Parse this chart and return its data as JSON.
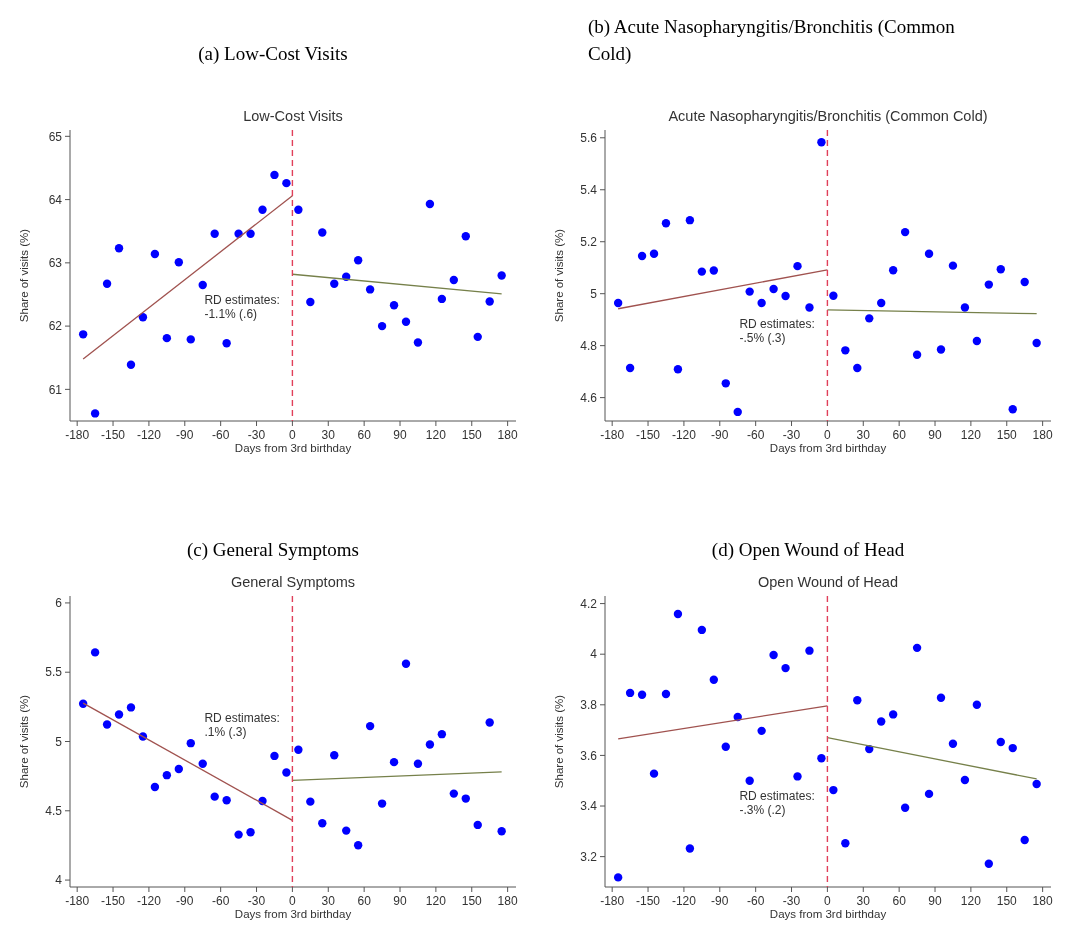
{
  "chart_data": [
    {
      "type": "scatter",
      "subtitle": "(a) Low-Cost Visits",
      "title": "Low-Cost Visits",
      "xlabel": "Days from 3rd birthday",
      "ylabel": "Share of visits (%)",
      "annotations": [
        "RD estimates:\n-1.1% (.6)"
      ],
      "xlim": [
        -186,
        187
      ],
      "xticks": [
        -180,
        -150,
        -120,
        -90,
        -60,
        -30,
        0,
        30,
        60,
        90,
        120,
        150,
        180
      ],
      "ylim": [
        60.5,
        65.1
      ],
      "yticks": [
        61,
        62,
        63,
        64,
        65
      ],
      "x": [
        -175,
        -165,
        -155,
        -145,
        -135,
        -125,
        -115,
        -105,
        -95,
        -85,
        -75,
        -65,
        -55,
        -45,
        -35,
        -25,
        -15,
        -5,
        5,
        15,
        25,
        35,
        45,
        55,
        65,
        75,
        85,
        95,
        105,
        115,
        125,
        135,
        145,
        155,
        165,
        175
      ],
      "ref_lines": [
        {
          "axis": "x",
          "value": 0,
          "color": "#e0405a",
          "line_style": "dashed"
        }
      ],
      "series": [
        {
          "marker": "circle",
          "color": "#0000ff",
          "values": [
            61.87,
            60.62,
            62.67,
            63.23,
            61.39,
            62.14,
            63.14,
            61.81,
            63.01,
            61.79,
            62.65,
            63.46,
            61.73,
            63.46,
            63.46,
            63.84,
            64.39,
            64.26,
            63.84,
            62.38,
            63.48,
            62.67,
            62.78,
            63.04,
            62.58,
            62.0,
            62.33,
            62.07,
            61.74,
            63.93,
            62.43,
            62.73,
            63.42,
            61.83,
            62.39,
            62.8
          ]
        },
        {
          "type": "line",
          "color": "#a0524f",
          "x": [
            -175,
            0
          ],
          "values": [
            61.48,
            64.06
          ]
        },
        {
          "type": "line",
          "color": "#76804a",
          "x": [
            0,
            175
          ],
          "values": [
            62.82,
            62.51
          ]
        }
      ]
    },
    {
      "type": "scatter",
      "subtitle": "(b) Acute Nasopharyngitis/Bronchitis (Common Cold)",
      "title": "Acute Nasopharyngitis/Bronchitis (Common Cold)",
      "xlabel": "Days from 3rd birthday",
      "ylabel": "Share of visits (%)",
      "annotations": [
        "RD estimates:\n-.5% (.3)"
      ],
      "xlim": [
        -186,
        187
      ],
      "xticks": [
        -180,
        -150,
        -120,
        -90,
        -60,
        -30,
        0,
        30,
        60,
        90,
        120,
        150,
        180
      ],
      "ylim": [
        4.51,
        5.63
      ],
      "yticks": [
        4.6,
        4.8,
        5,
        5.2,
        5.4,
        5.6
      ],
      "x": [
        -175,
        -165,
        -155,
        -145,
        -135,
        -125,
        -115,
        -105,
        -95,
        -85,
        -75,
        -65,
        -55,
        -45,
        -35,
        -25,
        -15,
        -5,
        5,
        15,
        25,
        35,
        45,
        55,
        65,
        75,
        85,
        95,
        105,
        115,
        125,
        135,
        145,
        155,
        165,
        175
      ],
      "ref_lines": [
        {
          "axis": "x",
          "value": 0,
          "color": "#e0405a",
          "line_style": "dashed"
        }
      ],
      "series": [
        {
          "marker": "circle",
          "color": "#0000ff",
          "values": [
            4.964,
            4.714,
            5.145,
            5.154,
            5.271,
            4.709,
            5.283,
            5.085,
            5.089,
            4.655,
            4.545,
            5.008,
            4.964,
            5.018,
            4.991,
            5.106,
            4.947,
            5.583,
            4.992,
            4.782,
            4.714,
            4.905,
            4.964,
            5.09,
            5.237,
            4.765,
            5.154,
            4.785,
            5.108,
            4.947,
            4.818,
            5.035,
            5.094,
            4.555,
            5.045,
            4.81
          ]
        },
        {
          "type": "line",
          "color": "#a0524f",
          "x": [
            -175,
            0
          ],
          "values": [
            4.942,
            5.092
          ]
        },
        {
          "type": "line",
          "color": "#76804a",
          "x": [
            0,
            175
          ],
          "values": [
            4.938,
            4.923
          ]
        }
      ]
    },
    {
      "type": "scatter",
      "subtitle": "(c) General Symptoms",
      "title": "General Symptoms",
      "xlabel": "Days from 3rd birthday",
      "ylabel": "Share of visits (%)",
      "annotations": [
        "RD estimates:\n.1% (.3)"
      ],
      "xlim": [
        -186,
        187
      ],
      "xticks": [
        -180,
        -150,
        -120,
        -90,
        -60,
        -30,
        0,
        30,
        60,
        90,
        120,
        150,
        180
      ],
      "ylim": [
        3.95,
        6.05
      ],
      "yticks": [
        4,
        4.5,
        5,
        5.5,
        6
      ],
      "x": [
        -175,
        -165,
        -155,
        -145,
        -135,
        -125,
        -115,
        -105,
        -95,
        -85,
        -75,
        -65,
        -55,
        -45,
        -35,
        -25,
        -15,
        -5,
        5,
        15,
        25,
        35,
        45,
        55,
        65,
        75,
        85,
        95,
        105,
        115,
        125,
        135,
        145,
        155,
        165,
        175
      ],
      "ref_lines": [
        {
          "axis": "x",
          "value": 0,
          "color": "#e0405a",
          "line_style": "dashed"
        }
      ],
      "series": [
        {
          "marker": "circle",
          "color": "#0000ff",
          "values": [
            5.272,
            5.643,
            5.123,
            5.195,
            5.246,
            5.036,
            4.672,
            4.757,
            4.802,
            4.988,
            4.839,
            4.602,
            4.576,
            4.328,
            4.345,
            4.571,
            4.896,
            4.776,
            4.94,
            4.566,
            4.41,
            4.901,
            4.357,
            4.251,
            5.111,
            4.552,
            4.851,
            5.561,
            4.839,
            4.978,
            5.053,
            4.624,
            4.588,
            4.398,
            5.137,
            4.352
          ]
        },
        {
          "type": "line",
          "color": "#a0524f",
          "x": [
            -175,
            0
          ],
          "values": [
            5.277,
            4.431
          ]
        },
        {
          "type": "line",
          "color": "#76804a",
          "x": [
            0,
            175
          ],
          "values": [
            4.72,
            4.781
          ]
        }
      ]
    },
    {
      "type": "scatter",
      "subtitle": "(d) Open Wound of Head",
      "title": "Open Wound of Head",
      "xlabel": "Days from 3rd birthday",
      "ylabel": "Share of visits (%)",
      "annotations": [
        "RD estimates:\n-.3% (.2)"
      ],
      "xlim": [
        -186,
        187
      ],
      "xticks": [
        -180,
        -150,
        -120,
        -90,
        -60,
        -30,
        0,
        30,
        60,
        90,
        120,
        150,
        180
      ],
      "ylim": [
        3.08,
        4.23
      ],
      "yticks": [
        3.2,
        3.4,
        3.6,
        3.8,
        4,
        4.2
      ],
      "x": [
        -175,
        -165,
        -155,
        -145,
        -135,
        -125,
        -115,
        -105,
        -95,
        -85,
        -75,
        -65,
        -55,
        -45,
        -35,
        -25,
        -15,
        -5,
        5,
        15,
        25,
        35,
        45,
        55,
        65,
        75,
        85,
        95,
        105,
        115,
        125,
        135,
        145,
        155,
        165,
        175
      ],
      "ref_lines": [
        {
          "axis": "x",
          "value": 0,
          "color": "#e0405a",
          "line_style": "dashed"
        }
      ],
      "series": [
        {
          "marker": "circle",
          "color": "#0000ff",
          "values": [
            3.118,
            3.847,
            3.84,
            3.528,
            3.843,
            4.159,
            3.232,
            4.096,
            3.899,
            3.634,
            3.752,
            3.5,
            3.697,
            3.997,
            3.945,
            3.517,
            4.014,
            3.589,
            3.463,
            3.253,
            3.818,
            3.625,
            3.734,
            3.762,
            3.393,
            4.025,
            3.448,
            3.828,
            3.646,
            3.503,
            3.8,
            3.172,
            3.653,
            3.629,
            3.266,
            3.487
          ]
        },
        {
          "type": "line",
          "color": "#a0524f",
          "x": [
            -175,
            0
          ],
          "values": [
            3.665,
            3.796
          ]
        },
        {
          "type": "line",
          "color": "#76804a",
          "x": [
            0,
            175
          ],
          "values": [
            3.67,
            3.507
          ]
        }
      ]
    }
  ]
}
